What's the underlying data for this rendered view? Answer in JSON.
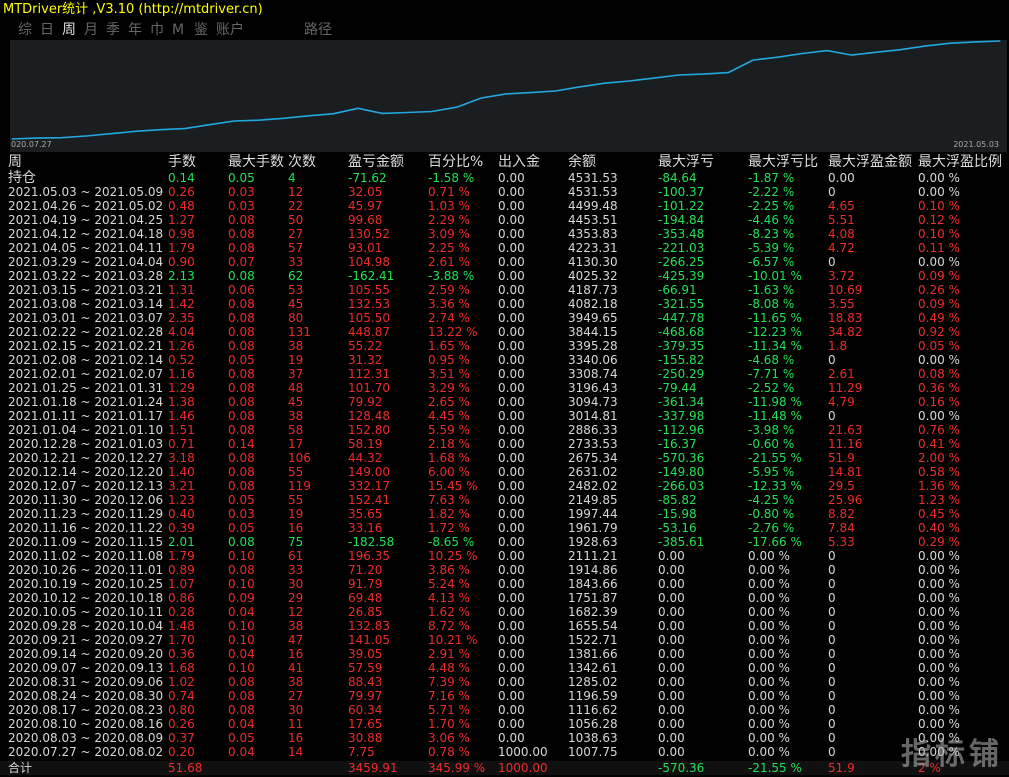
{
  "window": {
    "title": "MTDriver统计 ,V3.10 (http://mtdriver.cn)"
  },
  "tabs": [
    {
      "label": "综",
      "active": false
    },
    {
      "label": "日",
      "active": false
    },
    {
      "label": "周",
      "active": true
    },
    {
      "label": "月",
      "active": false
    },
    {
      "label": "季",
      "active": false
    },
    {
      "label": "年",
      "active": false
    },
    {
      "label": "巾",
      "active": false
    },
    {
      "label": "M",
      "active": false
    },
    {
      "label": "鉴",
      "active": false
    },
    {
      "label": "账户",
      "active": false
    },
    {
      "label": "路径",
      "active": false
    }
  ],
  "colors": {
    "background": "#000000",
    "chart_bg": "#1b1e21",
    "line": "#22a8e0",
    "profit": "#ee2b2b",
    "loss": "#22e055",
    "neutral": "#d8d8d8",
    "title": "#ffff00"
  },
  "chart_data": {
    "type": "line",
    "title": "",
    "x_start_label": "020.07.27",
    "x_end_label": "2021.05.03",
    "series": [
      {
        "values": [
          1007.75,
          1038.63,
          1056.28,
          1116.62,
          1196.59,
          1285.02,
          1342.61,
          1381.66,
          1522.71,
          1655.54,
          1682.39,
          1751.87,
          1843.66,
          1914.86,
          2111.21,
          1928.63,
          1961.79,
          1997.44,
          2149.85,
          2482.02,
          2631.02,
          2675.34,
          2733.53,
          2886.33,
          3014.81,
          3094.73,
          3196.43,
          3308.74,
          3340.06,
          3395.28,
          3844.15,
          3949.65,
          4082.18,
          4187.73,
          4025.32,
          4130.3,
          4223.31,
          4353.83,
          4453.51,
          4499.48,
          4531.53
        ]
      }
    ]
  },
  "table": {
    "headers": [
      "周",
      "手数",
      "最大手数",
      "次数",
      "盈亏金额",
      "百分比%",
      "出入金",
      "余额",
      "最大浮亏",
      "最大浮亏比",
      "最大浮盈金额",
      "最大浮盈比例"
    ],
    "holding": {
      "label": "持仓",
      "lots": "0.14",
      "max_lots": "0.05",
      "count": "4",
      "pnl": "-71.62",
      "pct": "-1.58 %",
      "io": "0.00",
      "balance": "4531.53",
      "max_dd": "-84.64",
      "max_dd_pct": "-1.87 %",
      "max_fp": "0.00",
      "max_fp_pct": "0.00 %",
      "sign": "dn"
    },
    "rows": [
      [
        "2021.05.03 ~ 2021.05.09",
        "0.26",
        "0.03",
        "12",
        "32.05",
        "0.71 %",
        "0.00",
        "4531.53",
        "-100.37",
        "-2.22 %",
        "0",
        "0.00 %",
        "up"
      ],
      [
        "2021.04.26 ~ 2021.05.02",
        "0.48",
        "0.03",
        "22",
        "45.97",
        "1.03 %",
        "0.00",
        "4499.48",
        "-101.22",
        "-2.25 %",
        "4.65",
        "0.10 %",
        "up"
      ],
      [
        "2021.04.19 ~ 2021.04.25",
        "1.27",
        "0.08",
        "50",
        "99.68",
        "2.29 %",
        "0.00",
        "4453.51",
        "-194.84",
        "-4.46 %",
        "5.51",
        "0.12 %",
        "up"
      ],
      [
        "2021.04.12 ~ 2021.04.18",
        "0.98",
        "0.08",
        "27",
        "130.52",
        "3.09 %",
        "0.00",
        "4353.83",
        "-353.48",
        "-8.23 %",
        "4.08",
        "0.10 %",
        "up"
      ],
      [
        "2021.04.05 ~ 2021.04.11",
        "1.79",
        "0.08",
        "57",
        "93.01",
        "2.25 %",
        "0.00",
        "4223.31",
        "-221.03",
        "-5.39 %",
        "4.72",
        "0.11 %",
        "up"
      ],
      [
        "2021.03.29 ~ 2021.04.04",
        "0.90",
        "0.07",
        "33",
        "104.98",
        "2.61 %",
        "0.00",
        "4130.30",
        "-266.25",
        "-6.57 %",
        "0",
        "0.00 %",
        "up"
      ],
      [
        "2021.03.22 ~ 2021.03.28",
        "2.13",
        "0.08",
        "62",
        "-162.41",
        "-3.88 %",
        "0.00",
        "4025.32",
        "-425.39",
        "-10.01 %",
        "3.72",
        "0.09 %",
        "dn"
      ],
      [
        "2021.03.15 ~ 2021.03.21",
        "1.31",
        "0.06",
        "53",
        "105.55",
        "2.59 %",
        "0.00",
        "4187.73",
        "-66.91",
        "-1.63 %",
        "10.69",
        "0.26 %",
        "up"
      ],
      [
        "2021.03.08 ~ 2021.03.14",
        "1.42",
        "0.08",
        "45",
        "132.53",
        "3.36 %",
        "0.00",
        "4082.18",
        "-321.55",
        "-8.08 %",
        "3.55",
        "0.09 %",
        "up"
      ],
      [
        "2021.03.01 ~ 2021.03.07",
        "2.35",
        "0.08",
        "80",
        "105.50",
        "2.74 %",
        "0.00",
        "3949.65",
        "-447.78",
        "-11.65 %",
        "18.83",
        "0.49 %",
        "up"
      ],
      [
        "2021.02.22 ~ 2021.02.28",
        "4.04",
        "0.08",
        "131",
        "448.87",
        "13.22 %",
        "0.00",
        "3844.15",
        "-468.68",
        "-12.23 %",
        "34.82",
        "0.92 %",
        "up"
      ],
      [
        "2021.02.15 ~ 2021.02.21",
        "1.26",
        "0.08",
        "38",
        "55.22",
        "1.65 %",
        "0.00",
        "3395.28",
        "-379.35",
        "-11.34 %",
        "1.8",
        "0.05 %",
        "up"
      ],
      [
        "2021.02.08 ~ 2021.02.14",
        "0.52",
        "0.05",
        "19",
        "31.32",
        "0.95 %",
        "0.00",
        "3340.06",
        "-155.82",
        "-4.68 %",
        "0",
        "0.00 %",
        "up"
      ],
      [
        "2021.02.01 ~ 2021.02.07",
        "1.16",
        "0.08",
        "37",
        "112.31",
        "3.51 %",
        "0.00",
        "3308.74",
        "-250.29",
        "-7.71 %",
        "2.61",
        "0.08 %",
        "up"
      ],
      [
        "2021.01.25 ~ 2021.01.31",
        "1.29",
        "0.08",
        "48",
        "101.70",
        "3.29 %",
        "0.00",
        "3196.43",
        "-79.44",
        "-2.52 %",
        "11.29",
        "0.36 %",
        "up"
      ],
      [
        "2021.01.18 ~ 2021.01.24",
        "1.38",
        "0.08",
        "45",
        "79.92",
        "2.65 %",
        "0.00",
        "3094.73",
        "-361.34",
        "-11.98 %",
        "4.79",
        "0.16 %",
        "up"
      ],
      [
        "2021.01.11 ~ 2021.01.17",
        "1.46",
        "0.08",
        "38",
        "128.48",
        "4.45 %",
        "0.00",
        "3014.81",
        "-337.98",
        "-11.48 %",
        "0",
        "0.00 %",
        "up"
      ],
      [
        "2021.01.04 ~ 2021.01.10",
        "1.51",
        "0.08",
        "58",
        "152.80",
        "5.59 %",
        "0.00",
        "2886.33",
        "-112.96",
        "-3.98 %",
        "21.63",
        "0.76 %",
        "up"
      ],
      [
        "2020.12.28 ~ 2021.01.03",
        "0.71",
        "0.14",
        "17",
        "58.19",
        "2.18 %",
        "0.00",
        "2733.53",
        "-16.37",
        "-0.60 %",
        "11.16",
        "0.41 %",
        "up"
      ],
      [
        "2020.12.21 ~ 2020.12.27",
        "3.18",
        "0.08",
        "106",
        "44.32",
        "1.68 %",
        "0.00",
        "2675.34",
        "-570.36",
        "-21.55 %",
        "51.9",
        "2.00 %",
        "up"
      ],
      [
        "2020.12.14 ~ 2020.12.20",
        "1.40",
        "0.08",
        "55",
        "149.00",
        "6.00 %",
        "0.00",
        "2631.02",
        "-149.80",
        "-5.95 %",
        "14.81",
        "0.58 %",
        "up"
      ],
      [
        "2020.12.07 ~ 2020.12.13",
        "3.21",
        "0.08",
        "119",
        "332.17",
        "15.45 %",
        "0.00",
        "2482.02",
        "-266.03",
        "-12.33 %",
        "29.5",
        "1.36 %",
        "up"
      ],
      [
        "2020.11.30 ~ 2020.12.06",
        "1.23",
        "0.05",
        "55",
        "152.41",
        "7.63 %",
        "0.00",
        "2149.85",
        "-85.82",
        "-4.25 %",
        "25.96",
        "1.23 %",
        "up"
      ],
      [
        "2020.11.23 ~ 2020.11.29",
        "0.40",
        "0.03",
        "19",
        "35.65",
        "1.82 %",
        "0.00",
        "1997.44",
        "-15.98",
        "-0.80 %",
        "8.82",
        "0.45 %",
        "up"
      ],
      [
        "2020.11.16 ~ 2020.11.22",
        "0.39",
        "0.05",
        "16",
        "33.16",
        "1.72 %",
        "0.00",
        "1961.79",
        "-53.16",
        "-2.76 %",
        "7.84",
        "0.40 %",
        "up"
      ],
      [
        "2020.11.09 ~ 2020.11.15",
        "2.01",
        "0.08",
        "75",
        "-182.58",
        "-8.65 %",
        "0.00",
        "1928.63",
        "-385.61",
        "-17.66 %",
        "5.33",
        "0.29 %",
        "dn"
      ],
      [
        "2020.11.02 ~ 2020.11.08",
        "1.79",
        "0.10",
        "61",
        "196.35",
        "10.25 %",
        "0.00",
        "2111.21",
        "0.00",
        "0.00 %",
        "0",
        "0.00 %",
        "up"
      ],
      [
        "2020.10.26 ~ 2020.11.01",
        "0.89",
        "0.08",
        "33",
        "71.20",
        "3.86 %",
        "0.00",
        "1914.86",
        "0.00",
        "0.00 %",
        "0",
        "0.00 %",
        "up"
      ],
      [
        "2020.10.19 ~ 2020.10.25",
        "1.07",
        "0.10",
        "30",
        "91.79",
        "5.24 %",
        "0.00",
        "1843.66",
        "0.00",
        "0.00 %",
        "0",
        "0.00 %",
        "up"
      ],
      [
        "2020.10.12 ~ 2020.10.18",
        "0.86",
        "0.09",
        "29",
        "69.48",
        "4.13 %",
        "0.00",
        "1751.87",
        "0.00",
        "0.00 %",
        "0",
        "0.00 %",
        "up"
      ],
      [
        "2020.10.05 ~ 2020.10.11",
        "0.28",
        "0.04",
        "12",
        "26.85",
        "1.62 %",
        "0.00",
        "1682.39",
        "0.00",
        "0.00 %",
        "0",
        "0.00 %",
        "up"
      ],
      [
        "2020.09.28 ~ 2020.10.04",
        "1.48",
        "0.10",
        "38",
        "132.83",
        "8.72 %",
        "0.00",
        "1655.54",
        "0.00",
        "0.00 %",
        "0",
        "0.00 %",
        "up"
      ],
      [
        "2020.09.21 ~ 2020.09.27",
        "1.70",
        "0.10",
        "47",
        "141.05",
        "10.21 %",
        "0.00",
        "1522.71",
        "0.00",
        "0.00 %",
        "0",
        "0.00 %",
        "up"
      ],
      [
        "2020.09.14 ~ 2020.09.20",
        "0.36",
        "0.04",
        "16",
        "39.05",
        "2.91 %",
        "0.00",
        "1381.66",
        "0.00",
        "0.00 %",
        "0",
        "0.00 %",
        "up"
      ],
      [
        "2020.09.07 ~ 2020.09.13",
        "1.68",
        "0.10",
        "41",
        "57.59",
        "4.48 %",
        "0.00",
        "1342.61",
        "0.00",
        "0.00 %",
        "0",
        "0.00 %",
        "up"
      ],
      [
        "2020.08.31 ~ 2020.09.06",
        "1.02",
        "0.08",
        "38",
        "88.43",
        "7.39 %",
        "0.00",
        "1285.02",
        "0.00",
        "0.00 %",
        "0",
        "0.00 %",
        "up"
      ],
      [
        "2020.08.24 ~ 2020.08.30",
        "0.74",
        "0.08",
        "27",
        "79.97",
        "7.16 %",
        "0.00",
        "1196.59",
        "0.00",
        "0.00 %",
        "0",
        "0.00 %",
        "up"
      ],
      [
        "2020.08.17 ~ 2020.08.23",
        "0.80",
        "0.08",
        "30",
        "60.34",
        "5.71 %",
        "0.00",
        "1116.62",
        "0.00",
        "0.00 %",
        "0",
        "0.00 %",
        "up"
      ],
      [
        "2020.08.10 ~ 2020.08.16",
        "0.26",
        "0.04",
        "11",
        "17.65",
        "1.70 %",
        "0.00",
        "1056.28",
        "0.00",
        "0.00 %",
        "0",
        "0.00 %",
        "up"
      ],
      [
        "2020.08.03 ~ 2020.08.09",
        "0.37",
        "0.05",
        "16",
        "30.88",
        "3.06 %",
        "0.00",
        "1038.63",
        "0.00",
        "0.00 %",
        "0",
        "0.00 %",
        "up"
      ],
      [
        "2020.07.27 ~ 2020.08.02",
        "0.20",
        "0.04",
        "14",
        "7.75",
        "0.78 %",
        "1000.00",
        "1007.75",
        "0.00",
        "0.00 %",
        "0",
        "0.00 %",
        "up"
      ]
    ],
    "total": {
      "label": "合计",
      "lots": "51.68",
      "pnl": "3459.91",
      "pct": "345.99 %",
      "io": "1000.00",
      "max_dd": "-570.36",
      "max_dd_pct": "-21.55 %",
      "max_fp": "51.9",
      "max_fp_pct": "2 %"
    }
  },
  "watermark": "指标铺"
}
